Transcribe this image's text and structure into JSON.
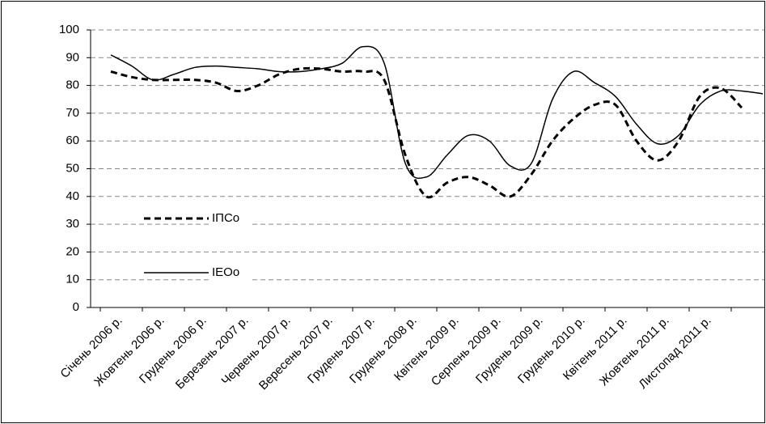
{
  "chart_data": {
    "type": "line",
    "categories": [
      "Січень 2006 р.",
      null,
      "Жовтень 2006 р.",
      null,
      "Грудень 2006 р.",
      null,
      "Березень 2007 р.",
      null,
      "Червень 2007 р.",
      null,
      "Вересень 2007 р.",
      null,
      "Грудень 2007 р.",
      null,
      "Грудень 2008 р.",
      null,
      "Квітень 2009 р.",
      null,
      "Серпень 2009 р.",
      null,
      "Грудень 2009 р.",
      null,
      "Грудень 2010 р.",
      null,
      "Квітень 2011 р.",
      null,
      "Жовтень 2011 р.",
      null,
      "Листопад 2011 р.",
      null,
      null,
      null
    ],
    "series": [
      {
        "name": "ІПСо",
        "color": "#000000",
        "dash": true,
        "values": [
          85,
          83,
          82,
          82,
          82,
          81,
          78,
          80,
          84,
          86,
          86,
          85,
          85,
          82,
          55,
          40,
          45,
          47,
          44,
          40,
          48,
          60,
          68,
          73,
          73,
          60,
          53,
          60,
          76,
          79,
          72,
          null
        ]
      },
      {
        "name": "ІЕОо",
        "color": "#000000",
        "dash": false,
        "values": [
          91,
          87,
          82,
          84,
          86.5,
          87,
          86.5,
          86,
          85,
          85,
          86,
          88,
          94,
          88,
          52,
          47,
          55,
          62,
          60,
          51,
          52,
          75,
          85,
          81,
          76,
          66,
          59,
          62,
          73,
          78,
          78,
          77
        ]
      }
    ],
    "ylim": [
      0,
      100
    ],
    "yticks": [
      0,
      10,
      20,
      30,
      40,
      50,
      60,
      70,
      80,
      90,
      100
    ],
    "grid": true
  }
}
